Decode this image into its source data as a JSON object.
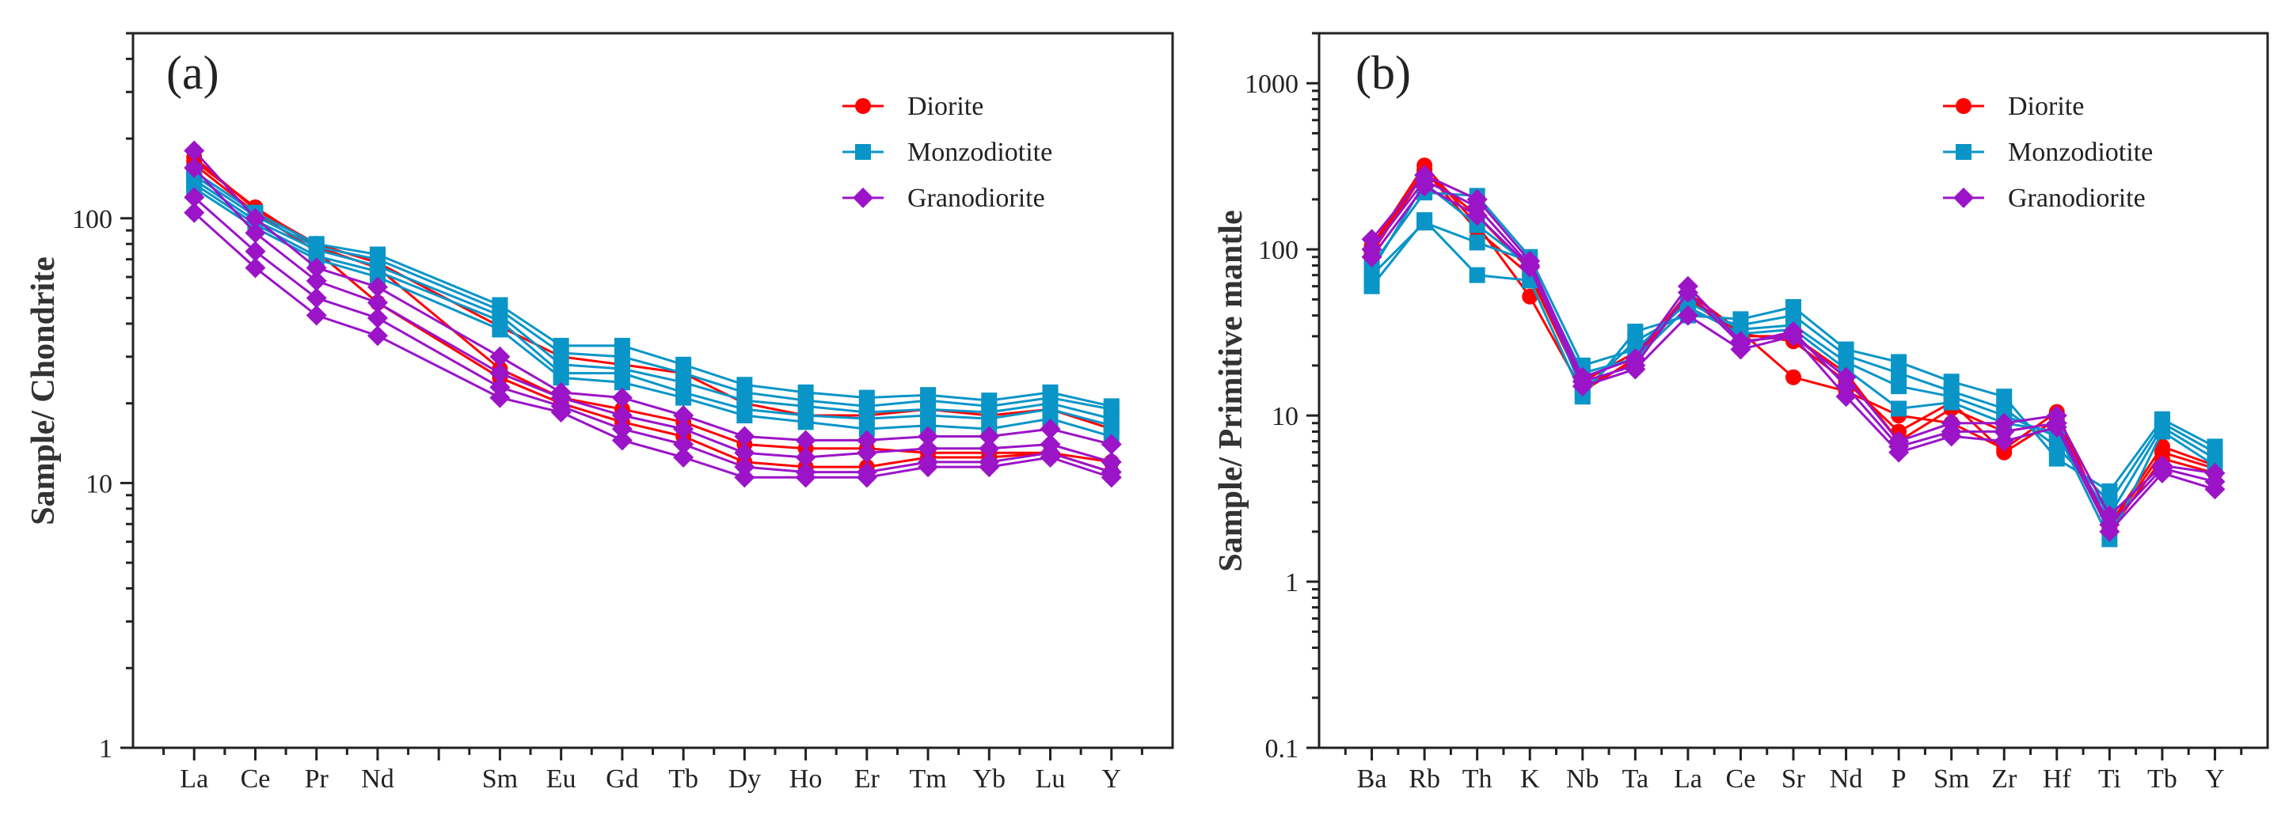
{
  "chart_data": [
    {
      "type": "line",
      "panel_label": "(a)",
      "ylabel": "Sample/ Chondrite",
      "xlabel": "",
      "yscale": "log",
      "ylim": [
        1,
        500
      ],
      "yticks": [
        1,
        10,
        100
      ],
      "ytick_labels": [
        "1",
        "10",
        "100"
      ],
      "grid": false,
      "legend_position": "top-right",
      "categories": [
        "La",
        "Ce",
        "Pr",
        "Nd",
        "Sm",
        "Eu",
        "Gd",
        "Tb",
        "Dy",
        "Ho",
        "Er",
        "Tm",
        "Yb",
        "Lu",
        "Y"
      ],
      "category_slots": [
        0,
        1,
        2,
        3,
        5,
        6,
        7,
        8,
        9,
        10,
        11,
        12,
        13,
        14,
        15
      ],
      "slot_range": [
        -1,
        16
      ],
      "legend": [
        {
          "name": "Diorite",
          "color": "#ff0000",
          "marker": "circle"
        },
        {
          "name": "Monzodiotite",
          "color": "#0a95c8",
          "marker": "square"
        },
        {
          "name": "Granodiorite",
          "color": "#9b14c8",
          "marker": "diamond"
        }
      ],
      "series": [
        {
          "group": "Diorite",
          "values": [
            165,
            110,
            78,
            65,
            27,
            21,
            19,
            17,
            14,
            13.5,
            13.5,
            13,
            13,
            13,
            12
          ]
        },
        {
          "group": "Diorite",
          "values": [
            160,
            105,
            75,
            48,
            25,
            20,
            17,
            15,
            12,
            11.5,
            11.5,
            12.5,
            12.5,
            13,
            11
          ]
        },
        {
          "group": "Diorite",
          "values": [
            170,
            108,
            80,
            68,
            39,
            30,
            28,
            26,
            20,
            18,
            18,
            19,
            18,
            19,
            16
          ]
        },
        {
          "group": "Monzodiotite",
          "values": [
            150,
            105,
            80,
            73,
            47,
            33,
            33,
            28,
            23.5,
            22,
            21,
            21.5,
            20.5,
            22,
            19.5
          ]
        },
        {
          "group": "Monzodiotite",
          "values": [
            145,
            102,
            78,
            70,
            45,
            31,
            30,
            26,
            22,
            20.5,
            19.5,
            20.5,
            19.5,
            21,
            19
          ]
        },
        {
          "group": "Monzodiotite",
          "values": [
            140,
            98,
            76,
            66,
            43,
            28,
            27,
            24,
            20.5,
            19.5,
            18.5,
            19,
            18.5,
            20,
            17.5
          ]
        },
        {
          "group": "Monzodiotite",
          "values": [
            135,
            95,
            72,
            63,
            41,
            26,
            26,
            22,
            19,
            18,
            17.5,
            18,
            17.5,
            19,
            16.5
          ]
        },
        {
          "group": "Monzodiotite",
          "values": [
            130,
            92,
            70,
            60,
            38,
            25,
            24,
            21,
            18,
            17,
            16,
            16.5,
            16,
            17.5,
            15
          ]
        },
        {
          "group": "Granodiorite",
          "values": [
            180,
            100,
            65,
            55,
            30,
            22,
            21,
            18,
            15,
            14.5,
            14.5,
            15,
            15,
            16,
            14
          ]
        },
        {
          "group": "Granodiorite",
          "values": [
            155,
            88,
            58,
            48,
            26,
            21,
            18,
            16,
            13,
            12.5,
            13,
            13.5,
            13.5,
            14,
            12
          ]
        },
        {
          "group": "Granodiorite",
          "values": [
            120,
            75,
            50,
            42,
            23,
            19.5,
            16,
            14,
            11.5,
            11,
            11,
            12,
            12,
            13,
            11
          ]
        },
        {
          "group": "Granodiorite",
          "values": [
            105,
            65,
            43,
            36,
            21,
            18.5,
            14.5,
            12.5,
            10.5,
            10.5,
            10.5,
            11.5,
            11.5,
            12.5,
            10.5
          ]
        }
      ]
    },
    {
      "type": "line",
      "panel_label": "(b)",
      "ylabel": "Sample/ Primitive mantle",
      "xlabel": "",
      "yscale": "log",
      "ylim": [
        0.1,
        2000
      ],
      "yticks": [
        0.1,
        1,
        10,
        100,
        1000
      ],
      "ytick_labels": [
        "0.1",
        "1",
        "10",
        "100",
        "1000"
      ],
      "grid": false,
      "legend_position": "top-right",
      "categories": [
        "Ba",
        "Rb",
        "Th",
        "K",
        "Nb",
        "Ta",
        "La",
        "Ce",
        "Sr",
        "Nd",
        "P",
        "Sm",
        "Zr",
        "Hf",
        "Ti",
        "Tb",
        "Y"
      ],
      "category_slots": [
        0,
        1,
        2,
        3,
        4,
        5,
        6,
        7,
        8,
        9,
        10,
        11,
        12,
        13,
        14,
        15,
        16
      ],
      "slot_range": [
        -1,
        17
      ],
      "legend": [
        {
          "name": "Diorite",
          "color": "#ff0000",
          "marker": "circle"
        },
        {
          "name": "Monzodiotite",
          "color": "#0a95c8",
          "marker": "square"
        },
        {
          "name": "Granodiorite",
          "color": "#9b14c8",
          "marker": "diamond"
        }
      ],
      "series": [
        {
          "group": "Diorite",
          "values": [
            105,
            320,
            140,
            52,
            14,
            22,
            55,
            32,
            17,
            14,
            10,
            9,
            6.3,
            10.5,
            2,
            5.5,
            4.5
          ]
        },
        {
          "group": "Diorite",
          "values": [
            95,
            290,
            160,
            75,
            16,
            24,
            50,
            30,
            30,
            18,
            7,
            11,
            8,
            9,
            2.2,
            6.5,
            5
          ]
        },
        {
          "group": "Diorite",
          "values": [
            100,
            300,
            130,
            70,
            15,
            21,
            52,
            31,
            28,
            16,
            8,
            12,
            6,
            9.5,
            2.1,
            6,
            4.8
          ]
        },
        {
          "group": "Monzodiotite",
          "values": [
            60,
            150,
            70,
            65,
            13,
            32,
            40,
            38,
            45,
            25,
            21,
            16,
            13,
            5.5,
            3.5,
            9.5,
            6.5
          ]
        },
        {
          "group": "Monzodiotite",
          "values": [
            70,
            145,
            110,
            85,
            14,
            28,
            42,
            35,
            40,
            23,
            18,
            14,
            11,
            6.5,
            3,
            9,
            6
          ]
        },
        {
          "group": "Monzodiotite",
          "values": [
            80,
            220,
            210,
            90,
            20,
            25,
            48,
            33,
            35,
            21,
            15,
            13,
            10,
            7.5,
            2.5,
            8.5,
            5.5
          ]
        },
        {
          "group": "Monzodiotite",
          "values": [
            75,
            250,
            140,
            80,
            18,
            22,
            45,
            31,
            33,
            19,
            11,
            12,
            9,
            8,
            1.8,
            8,
            5
          ]
        },
        {
          "group": "Granodiorite",
          "values": [
            115,
            280,
            200,
            85,
            17,
            22,
            60,
            28,
            30,
            17,
            7,
            9,
            9,
            10,
            2.5,
            5,
            4.5
          ]
        },
        {
          "group": "Granodiorite",
          "values": [
            100,
            260,
            180,
            80,
            16,
            20,
            55,
            27,
            32,
            15,
            6.5,
            8,
            8,
            9,
            2.2,
            4.8,
            4
          ]
        },
        {
          "group": "Granodiorite",
          "values": [
            90,
            240,
            160,
            78,
            15,
            19,
            40,
            25,
            30,
            13,
            6,
            7.5,
            7,
            8.5,
            2,
            4.5,
            3.6
          ]
        }
      ]
    }
  ]
}
